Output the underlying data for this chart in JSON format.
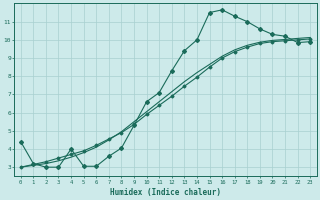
{
  "title": "",
  "xlabel": "Humidex (Indice chaleur)",
  "ylabel": "",
  "bg_color": "#cdeaea",
  "grid_color": "#a8d0d0",
  "line_color": "#1a6b5a",
  "xlim": [
    -0.5,
    23.5
  ],
  "ylim": [
    2.5,
    12.0
  ],
  "xticks": [
    0,
    1,
    2,
    3,
    4,
    5,
    6,
    7,
    8,
    9,
    10,
    11,
    12,
    13,
    14,
    15,
    16,
    17,
    18,
    19,
    20,
    21,
    22,
    23
  ],
  "yticks": [
    3,
    4,
    5,
    6,
    7,
    8,
    9,
    10,
    11
  ],
  "curve1_x": [
    0,
    1,
    2,
    3,
    4,
    5,
    6,
    7,
    8,
    9,
    10,
    11,
    12,
    13,
    14,
    15,
    16,
    17,
    18,
    19,
    20,
    21,
    22,
    23
  ],
  "curve1_y": [
    4.4,
    3.2,
    3.0,
    3.0,
    4.0,
    3.05,
    3.05,
    3.6,
    4.05,
    5.3,
    6.6,
    7.1,
    8.3,
    9.4,
    10.0,
    11.5,
    11.65,
    11.3,
    11.0,
    10.6,
    10.3,
    10.2,
    9.85,
    9.9
  ],
  "curve2_x": [
    0,
    1,
    2,
    3,
    4,
    5,
    6,
    7,
    8,
    9,
    10,
    11,
    12,
    13,
    14,
    15,
    16,
    17,
    18,
    19,
    20,
    21,
    22,
    23
  ],
  "curve2_y": [
    3.0,
    3.15,
    3.3,
    3.5,
    3.7,
    3.9,
    4.2,
    4.55,
    4.9,
    5.35,
    5.9,
    6.4,
    6.9,
    7.45,
    7.95,
    8.5,
    9.0,
    9.35,
    9.6,
    9.8,
    9.9,
    9.95,
    10.0,
    10.05
  ],
  "curve3_x": [
    0,
    1,
    2,
    3,
    4,
    5,
    6,
    7,
    8,
    9,
    10,
    11,
    12,
    13,
    14,
    15,
    16,
    17,
    18,
    19,
    20,
    21,
    22,
    23
  ],
  "curve3_y": [
    3.0,
    3.1,
    3.2,
    3.35,
    3.55,
    3.8,
    4.1,
    4.5,
    4.95,
    5.5,
    6.05,
    6.6,
    7.15,
    7.7,
    8.2,
    8.65,
    9.1,
    9.45,
    9.7,
    9.87,
    9.97,
    10.02,
    10.08,
    10.13
  ]
}
